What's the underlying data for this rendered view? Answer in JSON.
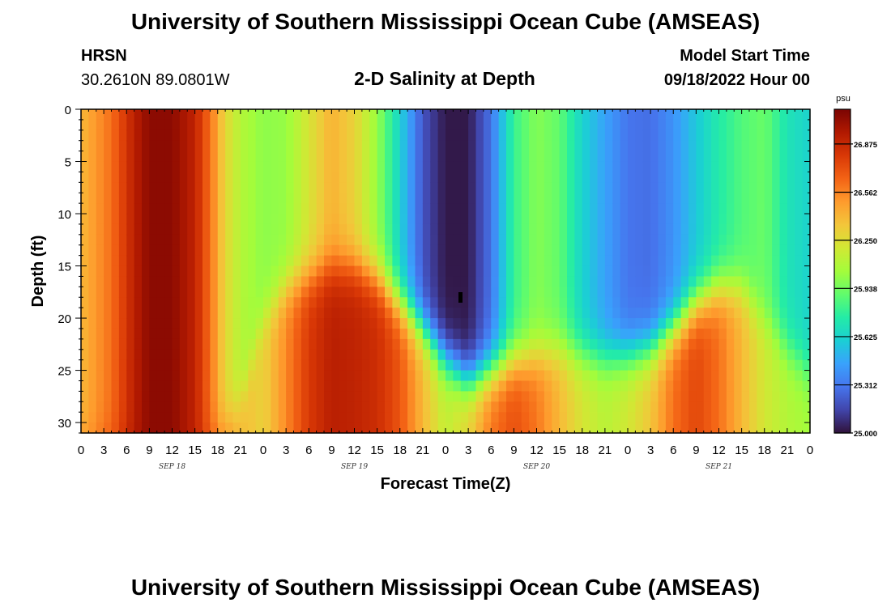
{
  "page": {
    "title": "University of Southern Mississippi Ocean Cube (AMSEAS)",
    "footer_title": "University of Southern Mississippi Ocean Cube (AMSEAS)",
    "station_code": "HRSN",
    "station_coords": "30.2610N  89.0801W",
    "subtitle": "2-D Salinity at Depth",
    "model_start_label": "Model Start Time",
    "model_start_value": "09/18/2022 Hour 00"
  },
  "chart_data": {
    "type": "heatmap",
    "title": "2-D Salinity at Depth",
    "xlabel": "Forecast Time(Z)",
    "ylabel": "Depth (ft)",
    "x_unit": "hours since 09/18/2022 00Z",
    "xlim": [
      0,
      96
    ],
    "ylim": [
      0,
      31
    ],
    "x_ticks": [
      0,
      3,
      6,
      9,
      12,
      15,
      18,
      21,
      24,
      27,
      30,
      33,
      36,
      39,
      42,
      45,
      48,
      51,
      54,
      57,
      60,
      63,
      66,
      69,
      72,
      75,
      78,
      81,
      84,
      87,
      90,
      93,
      96
    ],
    "x_tick_labels": [
      "0",
      "3",
      "6",
      "9",
      "12",
      "15",
      "18",
      "21",
      "0",
      "3",
      "6",
      "9",
      "12",
      "15",
      "18",
      "21",
      "0",
      "3",
      "6",
      "9",
      "12",
      "15",
      "18",
      "21",
      "0",
      "3",
      "6",
      "9",
      "12",
      "15",
      "18",
      "21",
      "0"
    ],
    "y_ticks": [
      0,
      5,
      10,
      15,
      20,
      25,
      30
    ],
    "y_tick_labels": [
      "0",
      "5",
      "10",
      "15",
      "20",
      "25",
      "30"
    ],
    "day_labels": [
      {
        "x": 12,
        "label": "SEP 18"
      },
      {
        "x": 36,
        "label": "SEP 19"
      },
      {
        "x": 60,
        "label": "SEP 20"
      },
      {
        "x": 84,
        "label": "SEP 21"
      }
    ],
    "colorbar": {
      "unit": "psu",
      "min": 25.0,
      "max": 27.1,
      "tick_values": [
        25.0,
        25.312,
        25.625,
        25.938,
        26.25,
        26.562,
        26.875
      ],
      "tick_labels": [
        "25.000",
        "25.312",
        "25.625",
        "25.938",
        "26.250",
        "26.562",
        "26.875"
      ],
      "colors": [
        "#30123b",
        "#4145ab",
        "#4675ed",
        "#39a2fc",
        "#1bcfd4",
        "#24eca6",
        "#61fc6c",
        "#a4fc3b",
        "#d1e834",
        "#f3c63a",
        "#fe9b2d",
        "#f36315",
        "#d93806",
        "#b11901",
        "#7a0402"
      ]
    },
    "surface_salinity_psu": [
      [
        0,
        26.4
      ],
      [
        4,
        26.62
      ],
      [
        7,
        26.92
      ],
      [
        9,
        27.05
      ],
      [
        12,
        27.05
      ],
      [
        15,
        26.9
      ],
      [
        17,
        26.62
      ],
      [
        19,
        26.28
      ],
      [
        21,
        26.1
      ],
      [
        24,
        26.0
      ],
      [
        27,
        26.02
      ],
      [
        30,
        26.22
      ],
      [
        33,
        26.42
      ],
      [
        36,
        26.3
      ],
      [
        39,
        26.02
      ],
      [
        42,
        25.62
      ],
      [
        45,
        25.2
      ],
      [
        48,
        25.02
      ],
      [
        51,
        25.02
      ],
      [
        54,
        25.3
      ],
      [
        57,
        25.8
      ],
      [
        60,
        25.98
      ],
      [
        63,
        25.9
      ],
      [
        66,
        25.62
      ],
      [
        69,
        25.45
      ],
      [
        72,
        25.3
      ],
      [
        75,
        25.28
      ],
      [
        78,
        25.4
      ],
      [
        81,
        25.58
      ],
      [
        84,
        25.74
      ],
      [
        87,
        25.86
      ],
      [
        90,
        25.92
      ],
      [
        93,
        25.7
      ],
      [
        96,
        25.62
      ]
    ],
    "bottom_salinity_psu": [
      [
        0,
        26.5
      ],
      [
        4,
        26.7
      ],
      [
        7,
        26.95
      ],
      [
        9,
        27.05
      ],
      [
        12,
        27.05
      ],
      [
        15,
        26.9
      ],
      [
        18,
        26.65
      ],
      [
        21,
        26.4
      ],
      [
        24,
        26.3
      ],
      [
        27,
        26.55
      ],
      [
        30,
        26.8
      ],
      [
        33,
        26.92
      ],
      [
        36,
        26.9
      ],
      [
        39,
        26.85
      ],
      [
        42,
        26.7
      ],
      [
        45,
        26.4
      ],
      [
        48,
        26.15
      ],
      [
        51,
        26.3
      ],
      [
        54,
        26.6
      ],
      [
        57,
        26.72
      ],
      [
        60,
        26.6
      ],
      [
        63,
        26.4
      ],
      [
        66,
        26.22
      ],
      [
        69,
        26.12
      ],
      [
        72,
        26.2
      ],
      [
        75,
        26.35
      ],
      [
        78,
        26.62
      ],
      [
        81,
        26.75
      ],
      [
        84,
        26.62
      ],
      [
        87,
        26.4
      ],
      [
        90,
        26.2
      ],
      [
        93,
        26.1
      ],
      [
        96,
        26.05
      ]
    ],
    "interface_depth_ft": [
      [
        0,
        31
      ],
      [
        6,
        31
      ],
      [
        12,
        31
      ],
      [
        18,
        31
      ],
      [
        21,
        28
      ],
      [
        24,
        20
      ],
      [
        27,
        17
      ],
      [
        30,
        16
      ],
      [
        33,
        15
      ],
      [
        36,
        15
      ],
      [
        39,
        16
      ],
      [
        42,
        18.5
      ],
      [
        45,
        21
      ],
      [
        48,
        24
      ],
      [
        51,
        26
      ],
      [
        54,
        25
      ],
      [
        57,
        24
      ],
      [
        60,
        23.5
      ],
      [
        63,
        23
      ],
      [
        66,
        23.5
      ],
      [
        69,
        23.8
      ],
      [
        72,
        23.6
      ],
      [
        75,
        23
      ],
      [
        78,
        21
      ],
      [
        81,
        18.5
      ],
      [
        84,
        17
      ],
      [
        87,
        17
      ],
      [
        90,
        20
      ],
      [
        93,
        23
      ],
      [
        96,
        25
      ]
    ]
  }
}
